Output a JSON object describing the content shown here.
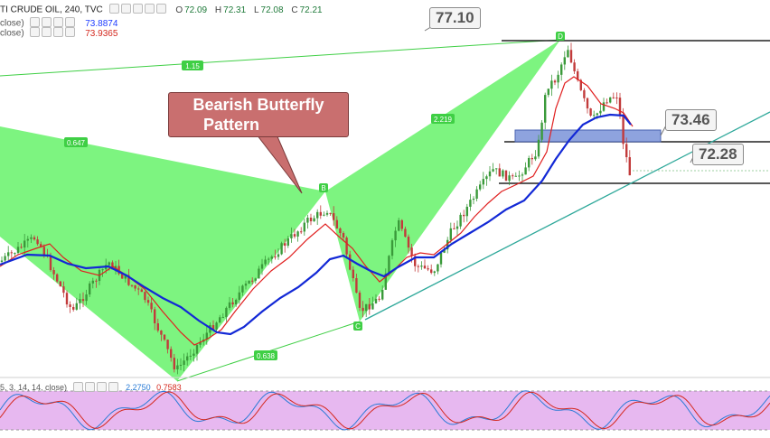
{
  "header": {
    "symbol": "TI CRUDE OIL, 240, TVC",
    "o_label": "O",
    "o": "72.09",
    "h_label": "H",
    "h": "72.31",
    "l_label": "L",
    "l": "72.08",
    "c_label": "C",
    "c": "72.21",
    "ma1_label": "close)",
    "ma1_value": "73.8874",
    "ma2_label": "close)",
    "ma2_value": "73.9365",
    "osc_label": "5, 3, 14, 14, close)",
    "osc_value1": "2.2750",
    "osc_value2": "0.7583"
  },
  "callout": {
    "line1": "Bearish Butterfly",
    "line2": "Pattern"
  },
  "price_labels": {
    "top": "77.10",
    "resistance": "73.46",
    "support": "72.28"
  },
  "fib_labels": {
    "xa": "1.15",
    "xb": "0.647",
    "bc": "2.219",
    "ac": "0.638"
  },
  "pattern_points": {
    "d": "D",
    "b": "B",
    "c": "C"
  },
  "colors": {
    "harmonic_fill": "#66f26a",
    "ma_fast": "#e02020",
    "ma_slow": "#1228d6",
    "trendline": "#2ea89a",
    "resistance_box": "#7a93d8",
    "osc_band": "#e7b8f0",
    "candle_up": "#3a9a3a",
    "candle_down": "#c23b3b"
  },
  "chart_data": {
    "type": "line",
    "price_levels": [
      77.1,
      73.46,
      72.28
    ],
    "harmonic_pattern": "Bearish Butterfly",
    "fib_ratios": [
      1.15,
      0.647,
      2.219,
      0.638
    ],
    "indicators": [
      {
        "values": [
          73.8874
        ]
      },
      {
        "values": [
          73.9365
        ]
      },
      {
        "values": [
          2.275,
          0.7583
        ]
      }
    ]
  }
}
